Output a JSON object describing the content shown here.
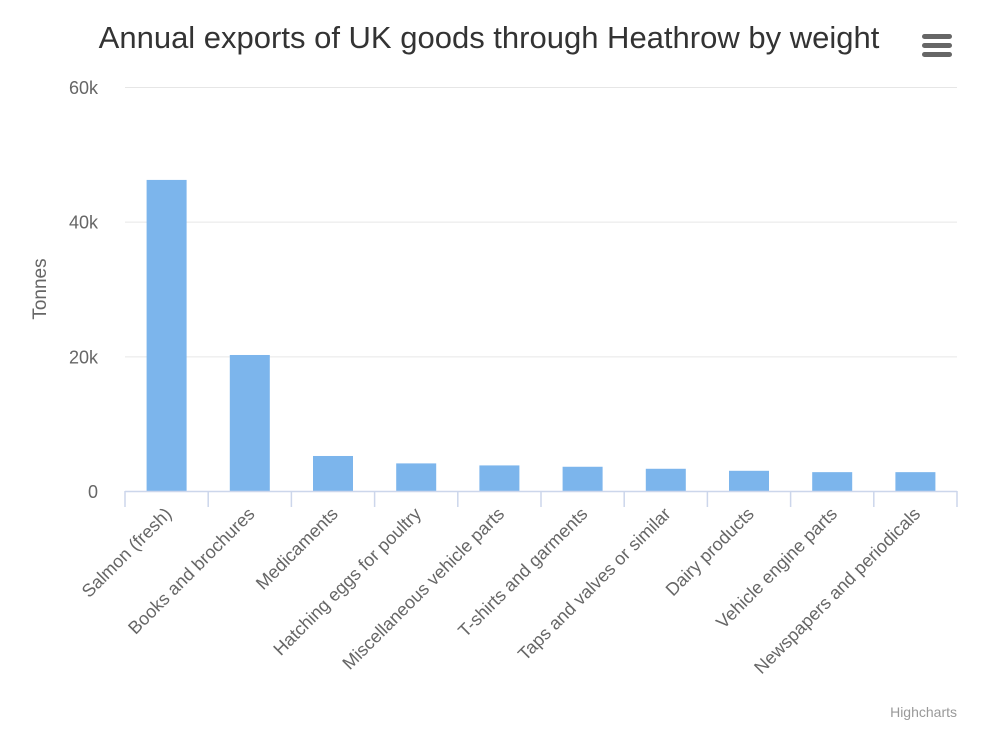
{
  "title": "Annual exports of UK goods through Heathrow by weight",
  "credits": "Highcharts",
  "menu_icon": "hamburger-menu-icon",
  "colors": {
    "bar": "#7cb5ec",
    "grid": "#e6e6e6",
    "axis": "#ccd6eb",
    "text": "#333333",
    "label": "#666666"
  },
  "chart_data": {
    "type": "bar",
    "title": "Annual exports of UK goods through Heathrow by weight",
    "xlabel": "",
    "ylabel": "Tonnes",
    "ylim": [
      0,
      60000
    ],
    "yticks": [
      {
        "value": 0,
        "label": "0"
      },
      {
        "value": 20000,
        "label": "20k"
      },
      {
        "value": 40000,
        "label": "40k"
      },
      {
        "value": 60000,
        "label": "60k"
      }
    ],
    "grid": true,
    "legend": "none",
    "categories": [
      "Salmon (fresh)",
      "Books and brochures",
      "Medicaments",
      "Hatching eggs for poultry",
      "Miscellaneous vehicle parts",
      "T-shirts and garments",
      "Taps and valves or similar",
      "Dairy products",
      "Vehicle engine parts",
      "Newspapers and periodicals"
    ],
    "values": [
      46200,
      20200,
      5200,
      4100,
      3800,
      3600,
      3300,
      3000,
      2800,
      2800
    ]
  }
}
